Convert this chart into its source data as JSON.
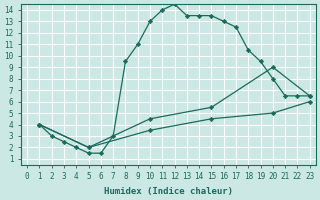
{
  "xlabel": "Humidex (Indice chaleur)",
  "bg_color": "#cce8e4",
  "grid_color": "#ffffff",
  "line_color": "#1a6b5a",
  "xlim": [
    -0.5,
    23.5
  ],
  "ylim": [
    0.5,
    14.5
  ],
  "xticks": [
    0,
    1,
    2,
    3,
    4,
    5,
    6,
    7,
    8,
    9,
    10,
    11,
    12,
    13,
    14,
    15,
    16,
    17,
    18,
    19,
    20,
    21,
    22,
    23
  ],
  "yticks": [
    1,
    2,
    3,
    4,
    5,
    6,
    7,
    8,
    9,
    10,
    11,
    12,
    13,
    14
  ],
  "series1_x": [
    1,
    2,
    3,
    4,
    5,
    6,
    7,
    8,
    9,
    10,
    11,
    12,
    13,
    14,
    15,
    16,
    17,
    18,
    19,
    20,
    21,
    22,
    23
  ],
  "series1_y": [
    4,
    3,
    2.5,
    2,
    1.5,
    1.5,
    3,
    9.5,
    11,
    13,
    14,
    14.5,
    13.5,
    13.5,
    13.5,
    13,
    12.5,
    10.5,
    9.5,
    8,
    6.5,
    6.5,
    6.5
  ],
  "series2_x": [
    1,
    5,
    10,
    15,
    20,
    23
  ],
  "series2_y": [
    4,
    2,
    4.5,
    5.5,
    9,
    6.5
  ],
  "series3_x": [
    1,
    5,
    10,
    15,
    20,
    23
  ],
  "series3_y": [
    4,
    2,
    3.5,
    4.5,
    5,
    6
  ]
}
